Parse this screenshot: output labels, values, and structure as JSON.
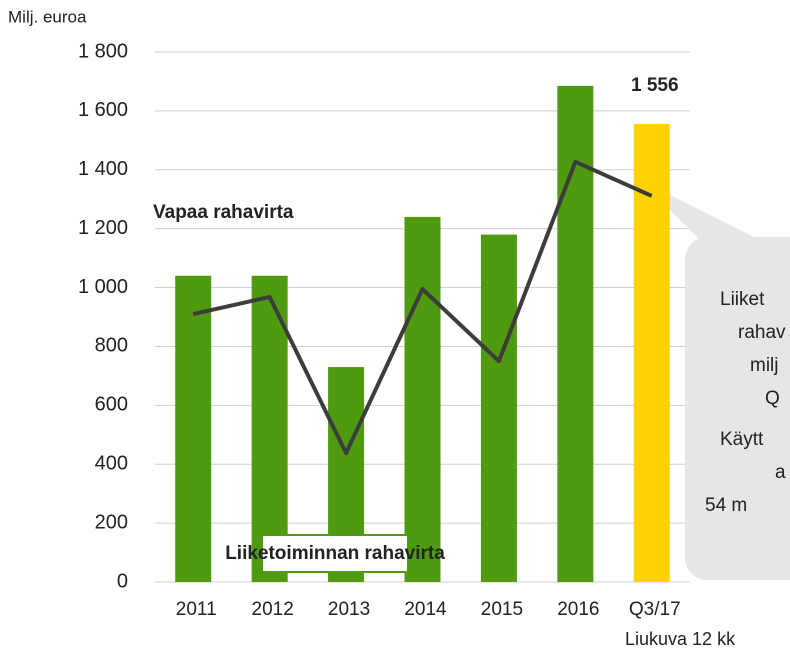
{
  "chart_data": {
    "type": "bar",
    "y_axis_label": "Milj. euroa",
    "subtitle": "Liukuva 12 kk",
    "categories": [
      "2011",
      "2012",
      "2013",
      "2014",
      "2015",
      "2016",
      "Q3/17"
    ],
    "series": [
      {
        "name": "Liiketoiminnan rahavirta",
        "type": "bar",
        "colors": [
          "#4f9a0f",
          "#4f9a0f",
          "#4f9a0f",
          "#4f9a0f",
          "#4f9a0f",
          "#4f9a0f",
          "#ffd200"
        ],
        "values": [
          1040,
          1040,
          730,
          1240,
          1180,
          1685,
          1556
        ],
        "value_labels": [
          null,
          null,
          null,
          null,
          null,
          null,
          "1 556"
        ]
      },
      {
        "name": "Vapaa rahavirta",
        "type": "line",
        "color": "#3c3c3c",
        "values": [
          910,
          968,
          438,
          995,
          750,
          1427,
          1311
        ]
      }
    ],
    "ylim": [
      0,
      1800
    ],
    "yticks": [
      0,
      200,
      400,
      600,
      800,
      {
        "value": 1000,
        "label": "1 000"
      },
      {
        "value": 1200,
        "label": "1 200"
      },
      {
        "value": 1400,
        "label": "1 400"
      },
      {
        "value": 1600,
        "label": "1 600"
      },
      {
        "value": 1800,
        "label": "1 800"
      }
    ],
    "grid": true,
    "callout": [
      "Liiket",
      "rahav",
      "milj",
      "Q",
      "Käytt",
      "a",
      "54 m"
    ]
  }
}
